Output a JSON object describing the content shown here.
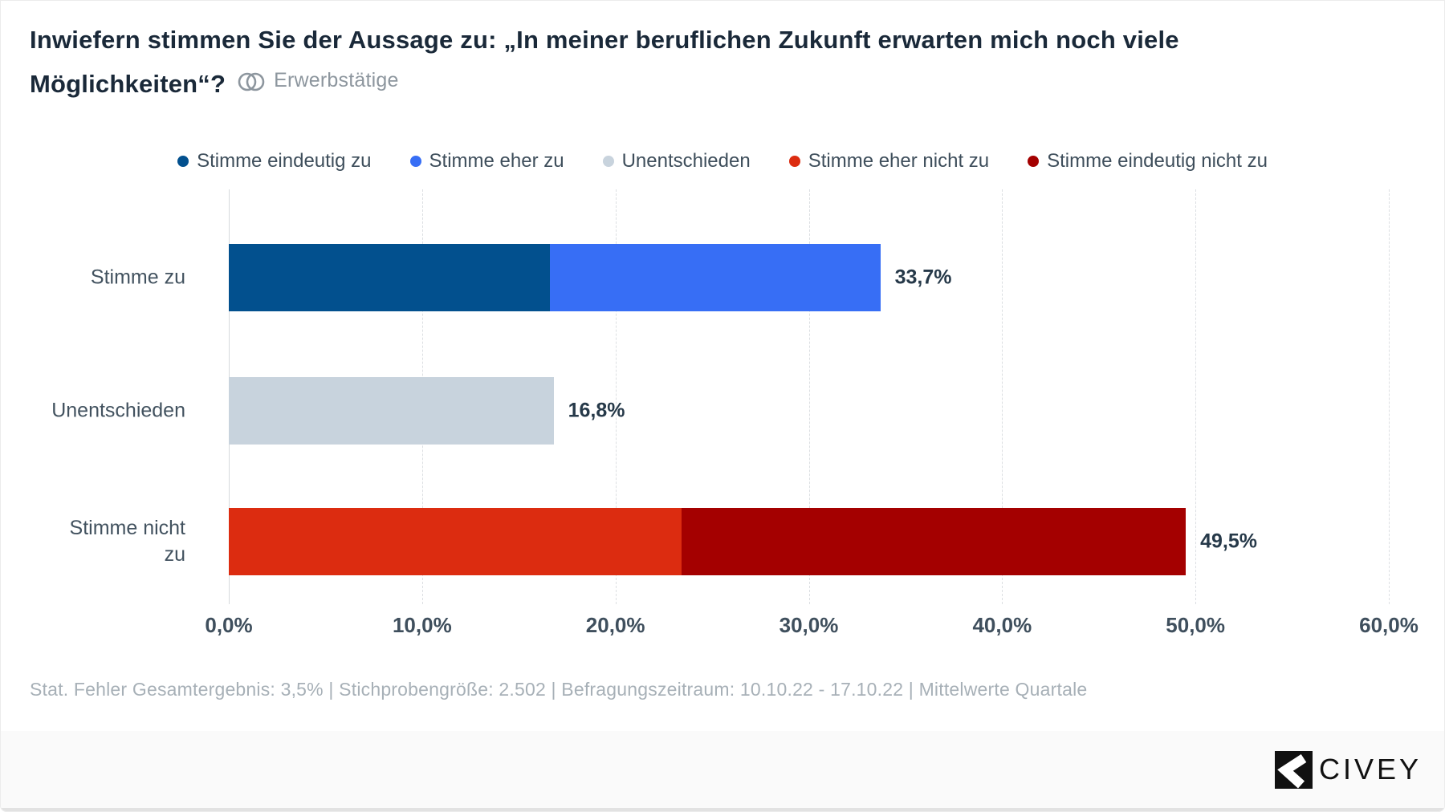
{
  "header": {
    "title": "Inwiefern stimmen Sie der Aussage zu: „In meiner beruflichen Zukunft erwarten mich noch viele Möglichkeiten“?",
    "audience": "Erwerbstätige"
  },
  "legend": {
    "items": [
      {
        "label": "Stimme eindeutig zu",
        "color": "#02508e"
      },
      {
        "label": "Stimme eher zu",
        "color": "#376ef5"
      },
      {
        "label": "Unentschieden",
        "color": "#c8d3dd"
      },
      {
        "label": "Stimme eher nicht zu",
        "color": "#dc2c10"
      },
      {
        "label": "Stimme eindeutig nicht zu",
        "color": "#a40000"
      }
    ]
  },
  "chart_data": {
    "type": "bar",
    "orientation": "horizontal",
    "title": "Inwiefern stimmen Sie der Aussage zu: „In meiner beruflichen Zukunft erwarten mich noch viele Möglichkeiten“?",
    "unit": "%",
    "grid": "vertical-dashed",
    "legend_position": "top-center",
    "axis": {
      "min": 0,
      "max": 60,
      "tick_values": [
        0,
        10,
        20,
        30,
        40,
        50,
        60
      ],
      "ticks": [
        "0,0%",
        "10,0%",
        "20,0%",
        "30,0%",
        "40,0%",
        "50,0%",
        "60,0%"
      ]
    },
    "categories": [
      "Stimme zu",
      "Unentschieden",
      "Stimme nicht zu"
    ],
    "rows": [
      {
        "category": "Stimme zu",
        "total": 33.7,
        "total_label": "33,7%",
        "segments": [
          {
            "name": "Stimme eindeutig zu",
            "value": 16.6,
            "color": "#02508e"
          },
          {
            "name": "Stimme eher zu",
            "value": 17.1,
            "color": "#376ef5"
          }
        ]
      },
      {
        "category": "Unentschieden",
        "total": 16.8,
        "total_label": "16,8%",
        "segments": [
          {
            "name": "Unentschieden",
            "value": 16.8,
            "color": "#c8d3dd"
          }
        ]
      },
      {
        "category": "Stimme nicht zu",
        "total": 49.5,
        "total_label": "49,5%",
        "segments": [
          {
            "name": "Stimme eher nicht zu",
            "value": 23.4,
            "color": "#dc2c10"
          },
          {
            "name": "Stimme eindeutig nicht zu",
            "value": 26.1,
            "color": "#a40000"
          }
        ]
      }
    ]
  },
  "footer": {
    "text": "Stat. Fehler Gesamtergebnis: 3,5% | Stichprobengröße: 2.502 | Befragungszeitraum: 10.10.22 - 17.10.22 | Mittelwerte Quartale"
  },
  "brand": {
    "name": "CIVEY",
    "color": "#111111"
  }
}
